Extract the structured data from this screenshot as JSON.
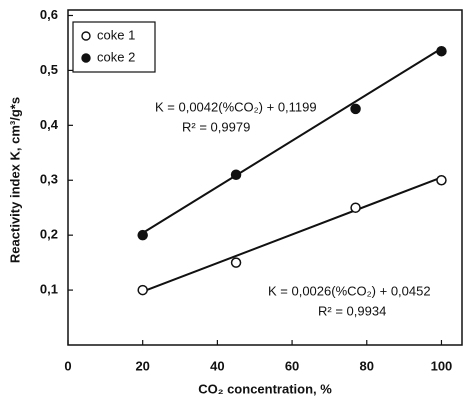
{
  "chart_data": {
    "type": "scatter",
    "x_label": "CO₂ concentration, %",
    "y_label": "Reactivity index K, cm³/g*s",
    "xlim": [
      0,
      105.5
    ],
    "ylim": [
      0,
      0.61
    ],
    "xticks": [
      0,
      20,
      40,
      60,
      80,
      100
    ],
    "yticks": [
      {
        "value": 0.1,
        "label": "0,1"
      },
      {
        "value": 0.2,
        "label": "0,2"
      },
      {
        "value": 0.3,
        "label": "0,3"
      },
      {
        "value": 0.4,
        "label": "0,4"
      },
      {
        "value": 0.5,
        "label": "0,5"
      },
      {
        "value": 0.6,
        "label": "0,6"
      }
    ],
    "legend": "top-left",
    "series": [
      {
        "name": "coke 1",
        "color": "#ffffff",
        "x": [
          20,
          45,
          77,
          100
        ],
        "values": [
          0.1,
          0.15,
          0.25,
          0.3
        ],
        "slope": 0.0026,
        "intercept": 0.0452
      },
      {
        "name": "coke 2",
        "color": "#111111",
        "x": [
          20,
          45,
          77,
          100
        ],
        "values": [
          0.2,
          0.31,
          0.43,
          0.535
        ],
        "slope": 0.0042,
        "intercept": 0.1199
      }
    ],
    "annotations": [
      "K = 0,0042(%CO₂) + 0,1199",
      "R² = 0,9979",
      "K = 0,0026(%CO₂) + 0,0452",
      "R² = 0,9934"
    ]
  }
}
